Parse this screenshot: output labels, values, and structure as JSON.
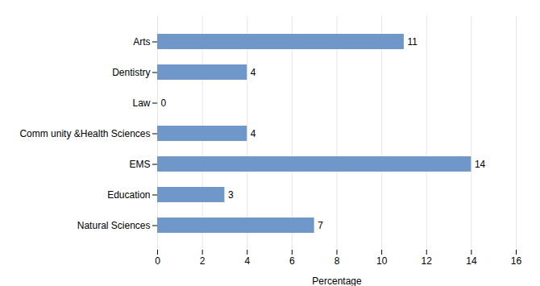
{
  "chart_data": {
    "type": "bar",
    "orientation": "horizontal",
    "categories": [
      "Natural Sciences",
      "Education",
      "EMS",
      "Comm unity &Health Sciences",
      "Law",
      "Dentistry",
      "Arts"
    ],
    "values": [
      7,
      3,
      14,
      4,
      0,
      4,
      11
    ],
    "color": "#6f97c8",
    "xlabel": "Percentage",
    "xlim": [
      0,
      16
    ],
    "xticks": [
      0,
      2,
      4,
      6,
      8,
      10,
      12,
      14,
      16
    ],
    "grid": true,
    "data_labels": true
  }
}
